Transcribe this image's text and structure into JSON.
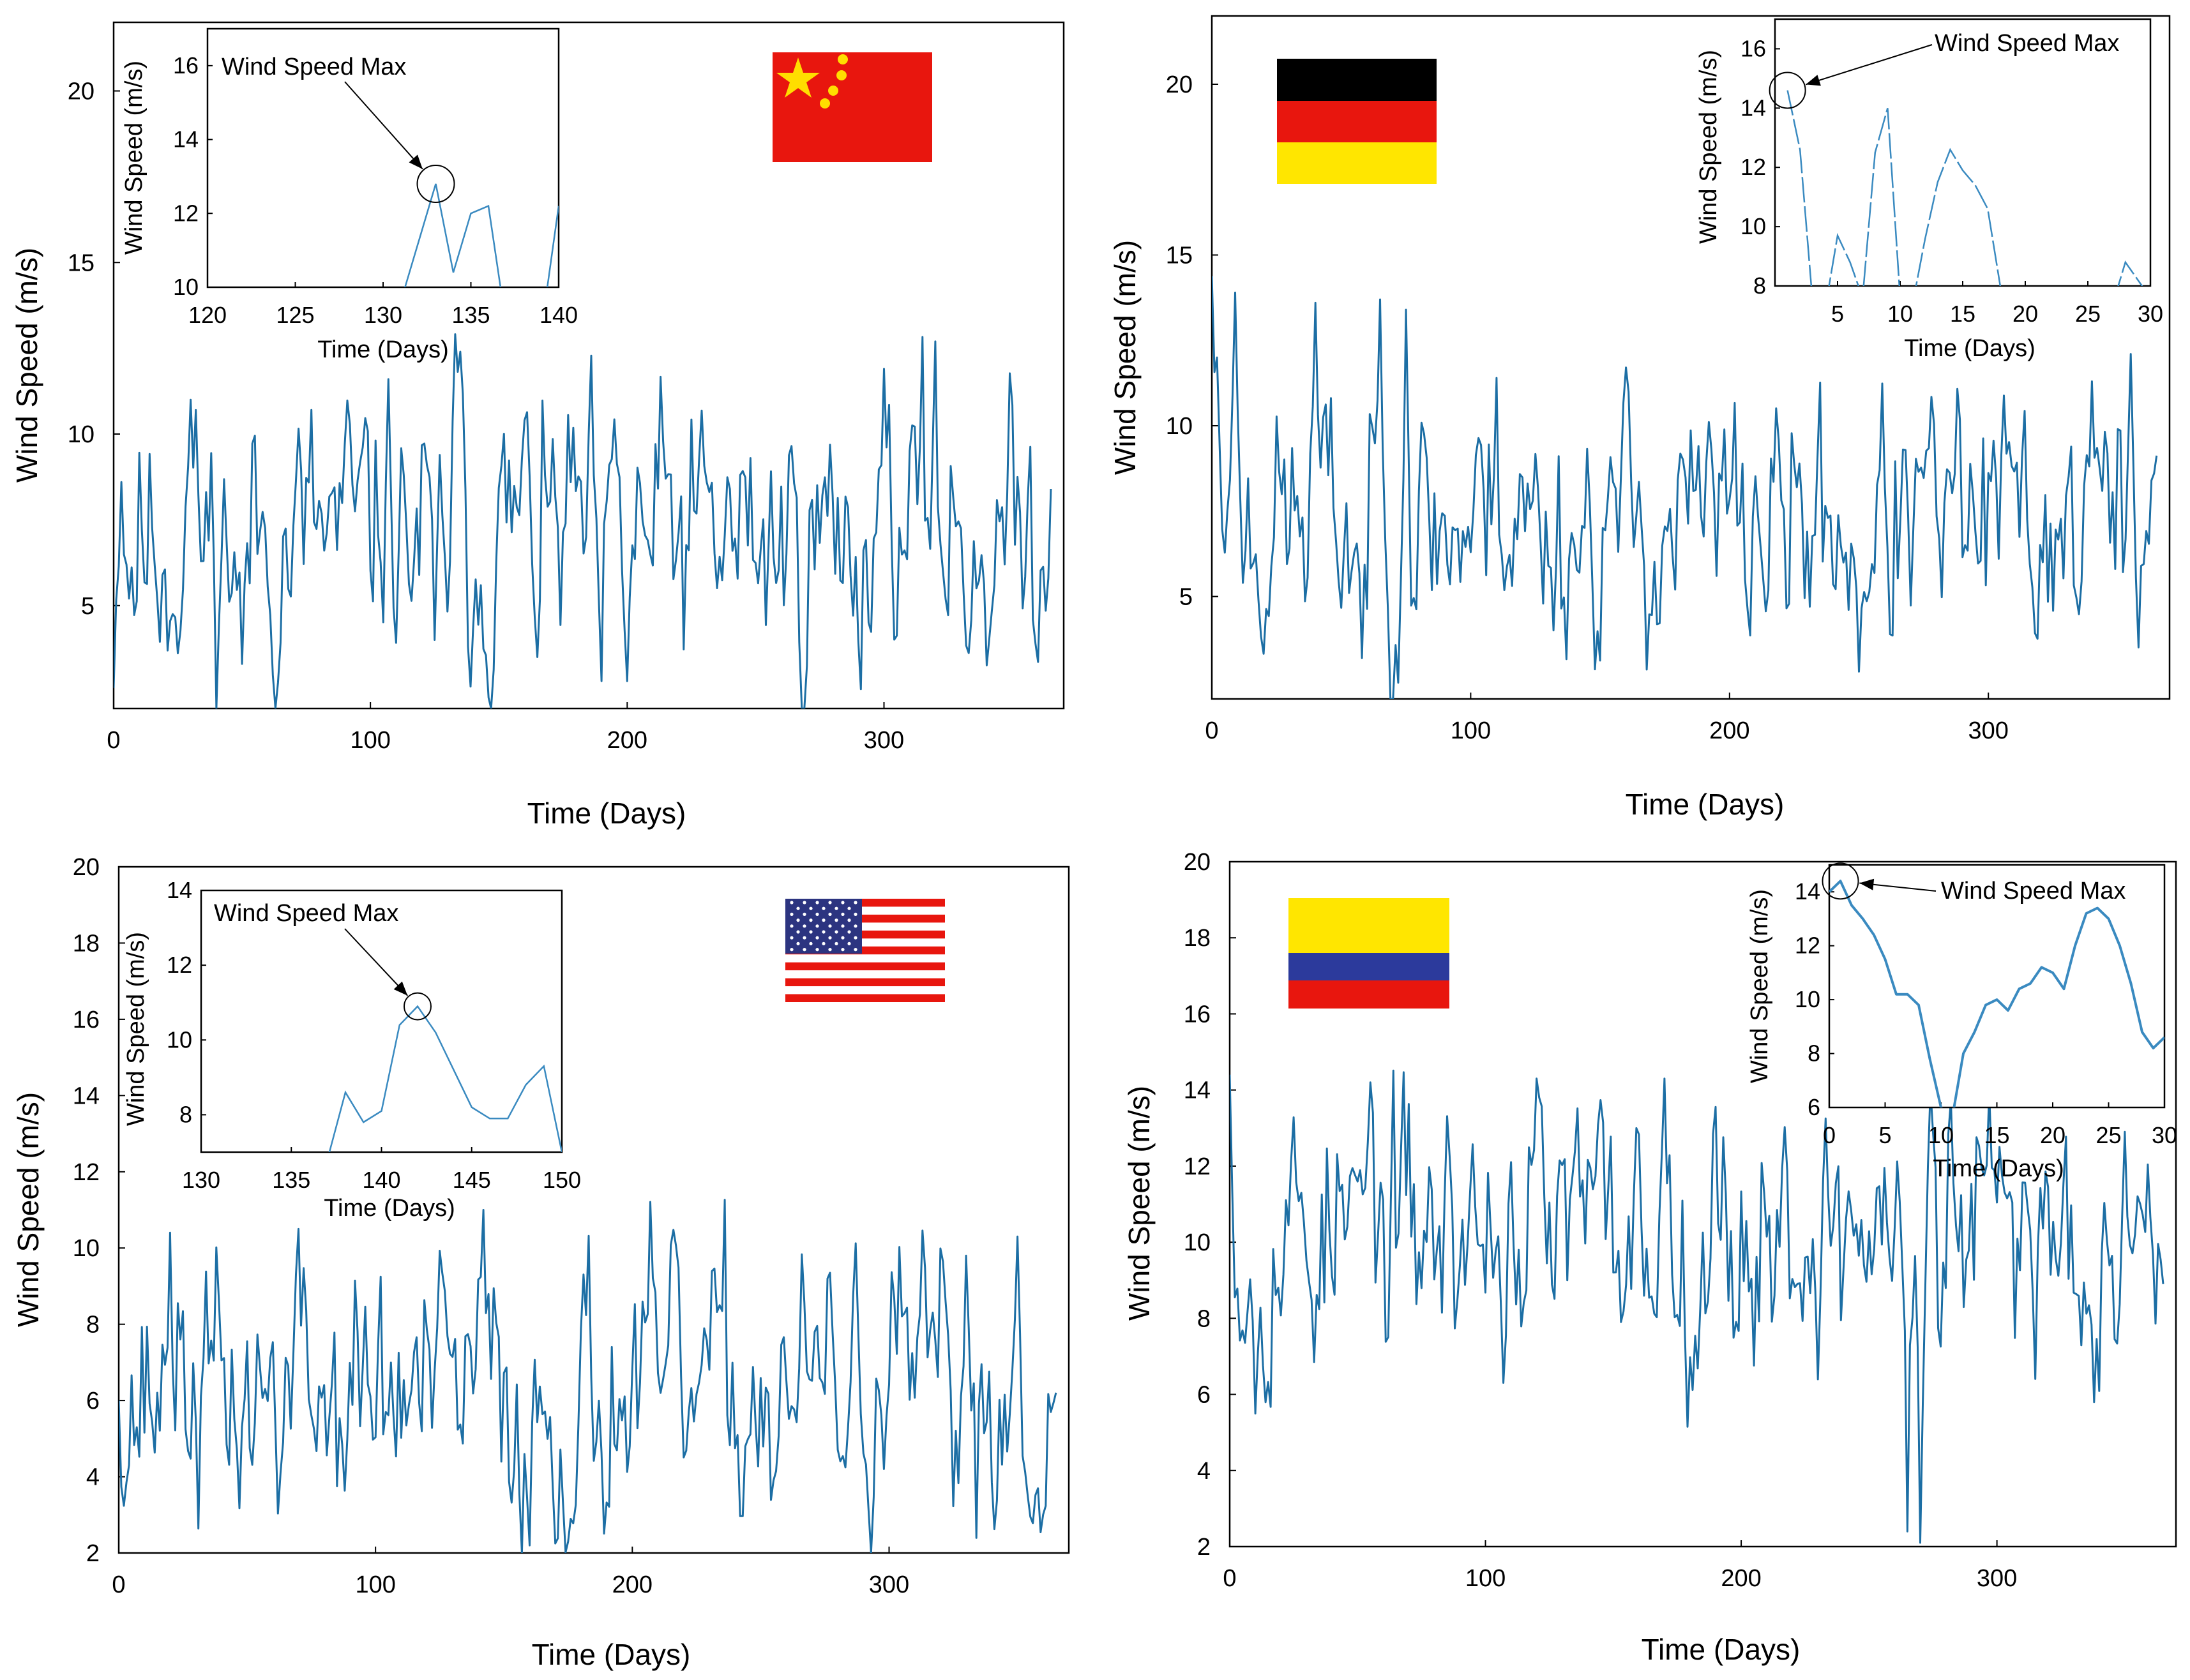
{
  "figure": {
    "colors": {
      "line": "#1c6ea4",
      "inset_line": "#3a8ac0",
      "axis": "#000000"
    }
  },
  "chart_data": [
    {
      "id": "china",
      "type": "line",
      "country_flag": "china-flag",
      "xlabel": "Time (Days)",
      "ylabel": "Wind Speed (m/s)",
      "xlim": [
        0,
        370
      ],
      "ylim": [
        2,
        22
      ],
      "xticks": [
        0,
        100,
        200,
        300
      ],
      "yticks": [
        5,
        10,
        15,
        20
      ],
      "seed": 11,
      "series": [
        {
          "name": "Wind speed",
          "mean": 6.9,
          "spread": 2.2,
          "keypoints": [
            [
              0,
              2.6
            ],
            [
              3,
              8.6
            ],
            [
              30,
              11.0
            ],
            [
              50,
              3.3
            ],
            [
              107,
              11.6
            ],
            [
              125,
              4.0
            ],
            [
              133,
              13.0
            ],
            [
              135,
              12.4
            ],
            [
              160,
              10.4
            ],
            [
              190,
              2.8
            ],
            [
              200,
              2.8
            ],
            [
              300,
              11.9
            ],
            [
              320,
              12.7
            ],
            [
              365,
              8.4
            ]
          ]
        }
      ],
      "inset": {
        "xlabel": "Time (Days)",
        "ylabel": "Wind Speed (m/s)",
        "xlim": [
          120,
          140
        ],
        "ylim": [
          10,
          17
        ],
        "xticks": [
          120,
          125,
          130,
          135,
          140
        ],
        "yticks": [
          10,
          12,
          14,
          16
        ],
        "annotation": "Wind Speed Max",
        "max_point": [
          133,
          12.8
        ],
        "points": [
          [
            131,
            9.6
          ],
          [
            132,
            11.2
          ],
          [
            133,
            12.8
          ],
          [
            134,
            10.4
          ],
          [
            135,
            12.0
          ],
          [
            136,
            12.2
          ],
          [
            137,
            9.0
          ],
          [
            138,
            8.6
          ],
          [
            139,
            8.8
          ],
          [
            140,
            12.2
          ]
        ]
      }
    },
    {
      "id": "germany",
      "type": "line",
      "country_flag": "germany-flag",
      "xlabel": "Time (Days)",
      "ylabel": "Wind Speed (m/s)",
      "xlim": [
        0,
        370
      ],
      "ylim": [
        2,
        22
      ],
      "xticks": [
        0,
        100,
        200,
        300
      ],
      "yticks": [
        5,
        10,
        15,
        20
      ],
      "seed": 23,
      "series": [
        {
          "name": "Wind speed",
          "mean": 7.1,
          "spread": 2.0,
          "keypoints": [
            [
              0,
              14.8
            ],
            [
              2,
              12.0
            ],
            [
              6,
              7.5
            ],
            [
              9,
              13.9
            ],
            [
              40,
              13.6
            ],
            [
              58,
              3.2
            ],
            [
              65,
              13.7
            ],
            [
              75,
              13.4
            ],
            [
              110,
              11.4
            ],
            [
              250,
              2.8
            ],
            [
              340,
              11.3
            ],
            [
              355,
              12.1
            ],
            [
              364,
              8.6
            ]
          ]
        }
      ],
      "inset": {
        "xlabel": "Time (Days)",
        "ylabel": "Wind Speed (m/s)",
        "xlim": [
          0,
          30
        ],
        "ylim": [
          8,
          17
        ],
        "xticks": [
          5,
          10,
          15,
          20,
          25,
          30
        ],
        "yticks": [
          8,
          10,
          12,
          14,
          16
        ],
        "annotation": "Wind Speed Max",
        "max_point": [
          1,
          14.6
        ],
        "points": [
          [
            1,
            14.6
          ],
          [
            2,
            12.6
          ],
          [
            3,
            7.5
          ],
          [
            4,
            7.2
          ],
          [
            5,
            9.7
          ],
          [
            6,
            8.8
          ],
          [
            7,
            7.6
          ],
          [
            8,
            12.5
          ],
          [
            9,
            14.0
          ],
          [
            10,
            7.6
          ],
          [
            11,
            7.4
          ],
          [
            12,
            9.6
          ],
          [
            13,
            11.5
          ],
          [
            14,
            12.6
          ],
          [
            15,
            11.9
          ],
          [
            16,
            11.4
          ],
          [
            17,
            10.6
          ],
          [
            18,
            8.0
          ],
          [
            19,
            7.2
          ],
          [
            27,
            7.4
          ],
          [
            28,
            8.8
          ],
          [
            29,
            8.2
          ],
          [
            30,
            7.6
          ]
        ]
      }
    },
    {
      "id": "usa",
      "type": "line",
      "country_flag": "usa-flag",
      "xlabel": "Time (Days)",
      "ylabel": "Wind Speed (m/s)",
      "xlim": [
        0,
        370
      ],
      "ylim": [
        2,
        20
      ],
      "xticks": [
        0,
        100,
        200,
        300
      ],
      "yticks": [
        2,
        4,
        6,
        8,
        10,
        12,
        14,
        16,
        18,
        20
      ],
      "seed": 37,
      "series": [
        {
          "name": "Wind speed",
          "mean": 6.1,
          "spread": 1.9,
          "keypoints": [
            [
              0,
              6.0
            ],
            [
              20,
              10.4
            ],
            [
              70,
              10.5
            ],
            [
              142,
              11.0
            ],
            [
              160,
              2.2
            ],
            [
              175,
              2.3
            ],
            [
              330,
              9.8
            ],
            [
              350,
              10.3
            ],
            [
              366,
              5.1
            ]
          ]
        }
      ],
      "inset": {
        "xlabel": "Time (Days)",
        "ylabel": "Wind Speed (m/s)",
        "xlim": [
          130,
          150
        ],
        "ylim": [
          7,
          14
        ],
        "xticks": [
          130,
          135,
          140,
          145,
          150
        ],
        "yticks": [
          8,
          10,
          12,
          14
        ],
        "annotation": "Wind Speed Max",
        "max_point": [
          142,
          10.9
        ],
        "points": [
          [
            137,
            6.8
          ],
          [
            138,
            8.6
          ],
          [
            139,
            7.8
          ],
          [
            140,
            8.1
          ],
          [
            141,
            10.4
          ],
          [
            142,
            10.9
          ],
          [
            143,
            10.2
          ],
          [
            144,
            9.2
          ],
          [
            145,
            8.2
          ],
          [
            146,
            7.9
          ],
          [
            147,
            7.9
          ],
          [
            148,
            8.8
          ],
          [
            149,
            9.3
          ],
          [
            150,
            7.0
          ]
        ]
      }
    },
    {
      "id": "colombia",
      "type": "line",
      "country_flag": "colombia-flag",
      "xlabel": "Time (Days)",
      "ylabel": "Wind Speed (m/s)",
      "xlim": [
        0,
        370
      ],
      "ylim": [
        2,
        20
      ],
      "xticks": [
        0,
        100,
        200,
        300
      ],
      "yticks": [
        2,
        4,
        6,
        8,
        10,
        12,
        14,
        16,
        18,
        20
      ],
      "seed": 53,
      "series": [
        {
          "name": "Wind speed",
          "mean": 10.3,
          "spread": 1.9,
          "keypoints": [
            [
              0,
              14.4
            ],
            [
              10,
              5.5
            ],
            [
              55,
              14.2
            ],
            [
              120,
              14.3
            ],
            [
              170,
              14.3
            ],
            [
              265,
              2.4
            ],
            [
              270,
              2.1
            ],
            [
              350,
              12.9
            ],
            [
              365,
              8.9
            ]
          ]
        }
      ],
      "inset": {
        "xlabel": "Time (Days)",
        "ylabel": "Wind Speed (m/s)",
        "xlim": [
          0,
          30
        ],
        "ylim": [
          6,
          15
        ],
        "xticks": [
          0,
          5,
          10,
          15,
          20,
          25,
          30
        ],
        "yticks": [
          6,
          8,
          10,
          12,
          14
        ],
        "annotation": "Wind Speed Max",
        "max_point": [
          1,
          14.4
        ],
        "points": [
          [
            0,
            14.0
          ],
          [
            1,
            14.4
          ],
          [
            2,
            13.5
          ],
          [
            3,
            13.0
          ],
          [
            4,
            12.4
          ],
          [
            5,
            11.5
          ],
          [
            6,
            10.2
          ],
          [
            7,
            10.2
          ],
          [
            8,
            9.8
          ],
          [
            9,
            7.8
          ],
          [
            10,
            6.0
          ],
          [
            11,
            5.6
          ],
          [
            12,
            8.0
          ],
          [
            13,
            8.8
          ],
          [
            14,
            9.8
          ],
          [
            15,
            10.0
          ],
          [
            16,
            9.6
          ],
          [
            17,
            10.4
          ],
          [
            18,
            10.6
          ],
          [
            19,
            11.2
          ],
          [
            20,
            11.0
          ],
          [
            21,
            10.4
          ],
          [
            22,
            12.0
          ],
          [
            23,
            13.2
          ],
          [
            24,
            13.4
          ],
          [
            25,
            13.0
          ],
          [
            26,
            12.0
          ],
          [
            27,
            10.6
          ],
          [
            28,
            8.8
          ],
          [
            29,
            8.2
          ],
          [
            30,
            8.6
          ]
        ]
      }
    }
  ]
}
